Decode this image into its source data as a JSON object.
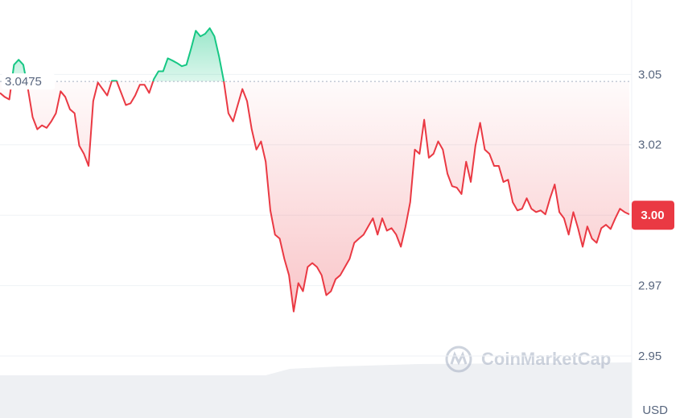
{
  "chart_data": {
    "type": "line",
    "values": [
      3.0434,
      3.042,
      3.0411,
      3.0534,
      3.0552,
      3.0534,
      3.0448,
      3.0348,
      3.0305,
      3.0319,
      3.031,
      3.0333,
      3.0362,
      3.044,
      3.042,
      3.0376,
      3.0362,
      3.0247,
      3.0218,
      3.0175,
      3.0405,
      3.0471,
      3.0448,
      3.0425,
      3.0477,
      3.0477,
      3.0434,
      3.0391,
      3.0397,
      3.0425,
      3.0463,
      3.0463,
      3.0434,
      3.0483,
      3.0511,
      3.0511,
      3.0557,
      3.0549,
      3.054,
      3.0529,
      3.0534,
      3.0592,
      3.0655,
      3.0635,
      3.0644,
      3.0664,
      3.0635,
      3.0563,
      3.0477,
      3.0362,
      3.0333,
      3.0391,
      3.0448,
      3.0405,
      3.0305,
      3.0233,
      3.0262,
      3.019,
      3.0017,
      2.9931,
      2.9917,
      2.9845,
      2.9787,
      2.9658,
      2.9759,
      2.973,
      2.9816,
      2.983,
      2.9816,
      2.9787,
      2.9716,
      2.973,
      2.9773,
      2.9787,
      2.9816,
      2.9845,
      2.9902,
      2.9917,
      2.9931,
      2.996,
      2.9989,
      2.9931,
      2.9989,
      2.9945,
      2.9954,
      2.9931,
      2.9888,
      2.996,
      3.0046,
      3.0233,
      3.0218,
      3.0339,
      3.0204,
      3.0218,
      3.0262,
      3.0233,
      3.0147,
      3.0103,
      3.0098,
      3.0075,
      3.019,
      3.0118,
      3.0247,
      3.0328,
      3.0233,
      3.0218,
      3.0175,
      3.0175,
      3.0118,
      3.0126,
      3.0046,
      3.0017,
      3.0023,
      3.006,
      3.0023,
      3.0011,
      3.0017,
      3.0003,
      3.006,
      3.0109,
      3.0011,
      2.9989,
      2.9931,
      3.0011,
      2.9954,
      2.9888,
      2.996,
      2.9917,
      2.9902,
      2.9954,
      2.9966,
      2.9951,
      2.9989,
      3.0023,
      3.0011,
      3.0003
    ],
    "baseline": 3.0475,
    "color_up": "#16c784",
    "color_down": "#ea3943",
    "ylim": [
      2.928,
      3.0764
    ],
    "yticks": [
      2.95,
      {
        "value": 2.975,
        "label": "2.97"
      },
      {
        "value": 3,
        "label": "3.00"
      },
      {
        "value": 3.025,
        "label": "3.02"
      },
      3.05
    ],
    "grid": true,
    "currency": "USD",
    "watermark": "CoinMarketCap"
  }
}
